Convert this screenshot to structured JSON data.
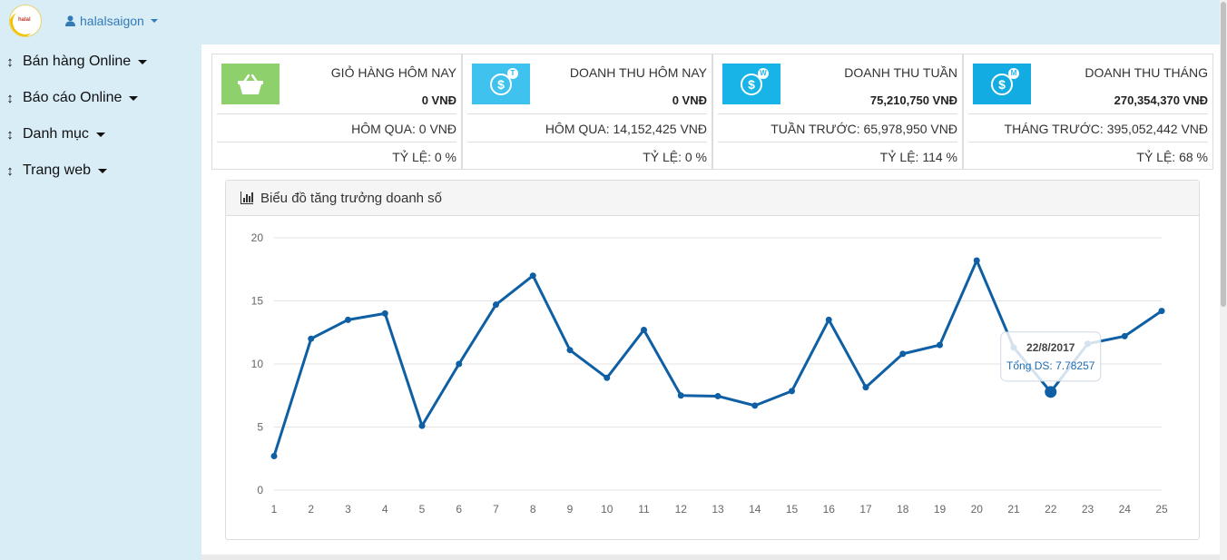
{
  "header": {
    "logo_text": "halal",
    "username": "halalsaigon"
  },
  "sidebar": {
    "items": [
      {
        "label": "Bán hàng Online"
      },
      {
        "label": "Báo cáo Online"
      },
      {
        "label": "Danh mục"
      },
      {
        "label": "Trang web"
      }
    ]
  },
  "stats": [
    {
      "title": "GIỎ HÀNG HÔM NAY",
      "value": "0 VNĐ",
      "prev": "HÔM QUA: 0 VNĐ",
      "ratio": "TỶ LỆ: 0 %",
      "icon": "basket-icon",
      "icon_color": "#8ed06b"
    },
    {
      "title": "DOANH THU HÔM NAY",
      "value": "0 VNĐ",
      "prev": "HÔM QUA: 14,152,425 VNĐ",
      "ratio": "TỶ LỆ: 0 %",
      "icon": "dollar-coin-icon",
      "icon_letter": "T",
      "icon_color": "#3fc3ee"
    },
    {
      "title": "DOANH THU TUẦN",
      "value": "75,210,750 VNĐ",
      "prev": "TUẦN TRƯỚC: 65,978,950 VNĐ",
      "ratio": "TỶ LỆ: 114 %",
      "icon": "dollar-coin-icon",
      "icon_letter": "W",
      "icon_color": "#18b4e7"
    },
    {
      "title": "DOANH THU THÁNG",
      "value": "270,354,370 VNĐ",
      "prev": "THÁNG TRƯỚC: 395,052,442 VNĐ",
      "ratio": "TỶ LỆ: 68 %",
      "icon": "dollar-coin-icon",
      "icon_letter": "M",
      "icon_color": "#12ace3"
    }
  ],
  "chart_panel": {
    "title": "Biểu đồ tăng trưởng doanh số"
  },
  "chart_data": {
    "type": "line",
    "x": [
      1,
      2,
      3,
      4,
      5,
      6,
      7,
      8,
      9,
      10,
      11,
      12,
      13,
      14,
      15,
      16,
      17,
      18,
      19,
      20,
      21,
      22,
      23,
      24,
      25
    ],
    "series": [
      {
        "values": [
          2.7,
          12,
          13.5,
          14,
          5.1,
          10,
          14.7,
          17,
          11.1,
          8.9,
          12.7,
          7.5,
          7.45,
          6.7,
          7.85,
          13.5,
          8.15,
          10.8,
          11.5,
          18.2,
          11.3,
          7.78257,
          11.6,
          12.2,
          14.2
        ]
      }
    ],
    "ylim": [
      0,
      20
    ],
    "yticks": [
      0,
      5,
      10,
      15,
      20
    ],
    "grid": true,
    "line_color": "#0e5fa3",
    "tooltip": {
      "index": 21,
      "title": "22/8/2017",
      "label": "Tổng DS: 7.78257"
    }
  }
}
